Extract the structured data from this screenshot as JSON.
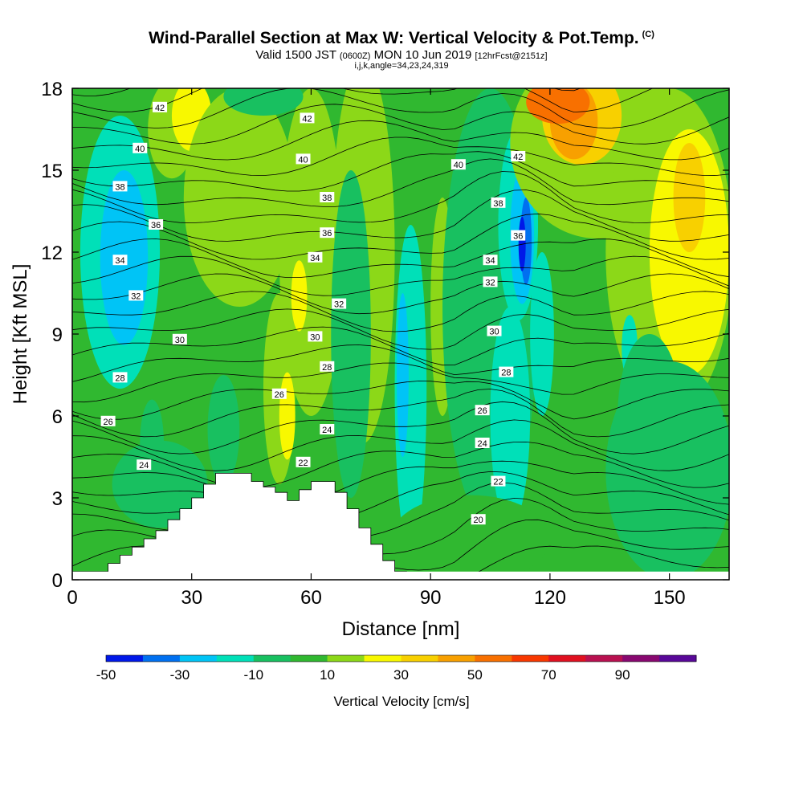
{
  "title": "Wind-Parallel Section at Max W: Vertical Velocity & Pot.Temp.",
  "title_mark": "(C)",
  "subtitle_main": "Valid 1500 JST",
  "subtitle_utc": "(0600Z)",
  "subtitle_date": "MON 10 Jun 2019",
  "subtitle_fcst": "[12hrFcst@2151z]",
  "subtitle_indices": "i,j,k,angle=34,23,24,319",
  "chart_data": {
    "type": "heatmap",
    "xlabel": "Distance [nm]",
    "ylabel": "Height [Kft MSL]",
    "xlim": [
      0,
      165
    ],
    "ylim": [
      0,
      18
    ],
    "xticks": [
      0,
      30,
      60,
      90,
      120,
      150
    ],
    "yticks": [
      0,
      3,
      6,
      9,
      12,
      15,
      18
    ],
    "colorbar": {
      "label": "Vertical Velocity [cm/s]",
      "ticks": [
        -50,
        -30,
        -10,
        10,
        30,
        50,
        70,
        90
      ],
      "colors": [
        "#0018e8",
        "#0070f0",
        "#00c4f6",
        "#00e0b8",
        "#18c060",
        "#30b830",
        "#8cd818",
        "#f8f800",
        "#f8d000",
        "#f8a000",
        "#f87000",
        "#f83800",
        "#e01020",
        "#b81050",
        "#880870",
        "#580898"
      ]
    },
    "terrain_top_kft": [
      0.3,
      0.6,
      0.9,
      1.2,
      1.5,
      1.8,
      2.2,
      2.6,
      3.0,
      3.5,
      3.9,
      3.9,
      3.9,
      3.6,
      3.4,
      3.2,
      2.9,
      3.3,
      3.6,
      3.6,
      3.2,
      2.6,
      1.9,
      1.3,
      0.7,
      0.3
    ],
    "theta_contours_c": [
      20,
      22,
      24,
      26,
      28,
      30,
      32,
      34,
      36,
      38,
      40,
      42
    ],
    "theta_labels": [
      {
        "v": "42",
        "x": 22,
        "y": 17.3
      },
      {
        "v": "40",
        "x": 17,
        "y": 15.8
      },
      {
        "v": "38",
        "x": 12,
        "y": 14.4
      },
      {
        "v": "36",
        "x": 21,
        "y": 13.0
      },
      {
        "v": "34",
        "x": 12,
        "y": 11.7
      },
      {
        "v": "32",
        "x": 16,
        "y": 10.4
      },
      {
        "v": "30",
        "x": 27,
        "y": 8.8
      },
      {
        "v": "28",
        "x": 12,
        "y": 7.4
      },
      {
        "v": "26",
        "x": 9,
        "y": 5.8
      },
      {
        "v": "24",
        "x": 18,
        "y": 4.2
      },
      {
        "v": "42",
        "x": 59,
        "y": 16.9
      },
      {
        "v": "40",
        "x": 58,
        "y": 15.4
      },
      {
        "v": "38",
        "x": 64,
        "y": 14.0
      },
      {
        "v": "36",
        "x": 64,
        "y": 12.7
      },
      {
        "v": "34",
        "x": 61,
        "y": 11.8
      },
      {
        "v": "32",
        "x": 67,
        "y": 10.1
      },
      {
        "v": "30",
        "x": 61,
        "y": 8.9
      },
      {
        "v": "28",
        "x": 64,
        "y": 7.8
      },
      {
        "v": "26",
        "x": 52,
        "y": 6.8
      },
      {
        "v": "24",
        "x": 64,
        "y": 5.5
      },
      {
        "v": "22",
        "x": 58,
        "y": 4.3
      },
      {
        "v": "40",
        "x": 97,
        "y": 15.2
      },
      {
        "v": "42",
        "x": 112,
        "y": 15.5
      },
      {
        "v": "38",
        "x": 107,
        "y": 13.8
      },
      {
        "v": "36",
        "x": 112,
        "y": 12.6
      },
      {
        "v": "34",
        "x": 105,
        "y": 11.7
      },
      {
        "v": "32",
        "x": 105,
        "y": 10.9
      },
      {
        "v": "30",
        "x": 106,
        "y": 9.1
      },
      {
        "v": "28",
        "x": 109,
        "y": 7.6
      },
      {
        "v": "26",
        "x": 103,
        "y": 6.2
      },
      {
        "v": "24",
        "x": 103,
        "y": 5.0
      },
      {
        "v": "22",
        "x": 107,
        "y": 3.6
      },
      {
        "v": "20",
        "x": 102,
        "y": 2.2
      }
    ]
  }
}
